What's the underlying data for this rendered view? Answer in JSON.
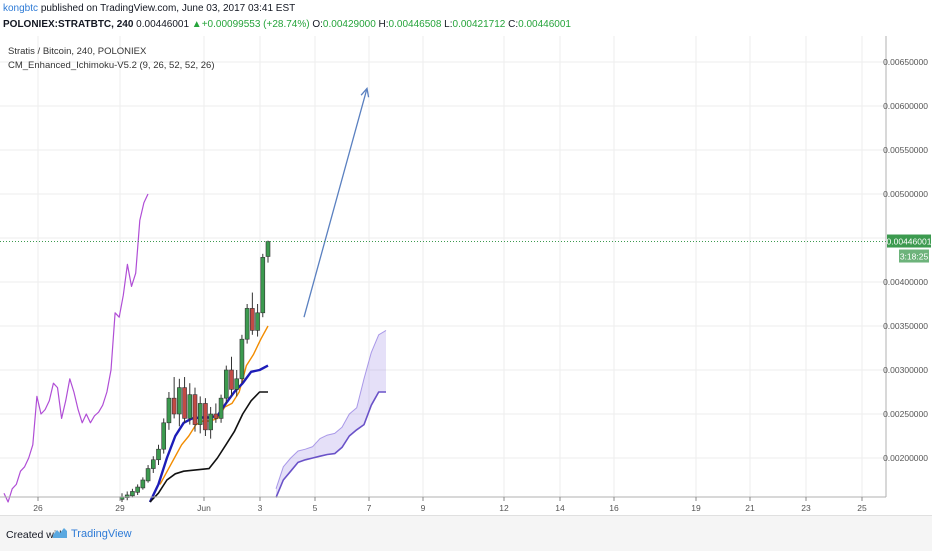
{
  "header": {
    "author": "kongbtc",
    "published": "published on TradingView.com, June 03, 2017 03:41 EST",
    "symbol": "POLONIEX:STRATBTC, 240",
    "last": "0.00446001",
    "change_arrow": "▲",
    "change": "+0.00099553 (+28.74%)",
    "o_label": "O:",
    "o": "0.00429000",
    "h_label": "H:",
    "h": "0.00446508",
    "l_label": "L:",
    "l": "0.00421712",
    "c_label": "C:",
    "c": "0.00446001"
  },
  "legend": {
    "title": "Stratis / Bitcoin, 240, POLONIEX",
    "indicator": "CM_Enhanced_Ichimoku-V5.2 (9, 26, 52, 52, 26)"
  },
  "price_axis": {
    "ticks": [
      "0.00650000",
      "0.00600000",
      "0.00550000",
      "0.00500000",
      "0.00400000",
      "0.00350000",
      "0.00300000",
      "0.00250000",
      "0.00200000"
    ],
    "last_price_tag": "0.00446001",
    "countdown_tag": "3:18:25"
  },
  "time_axis": {
    "ticks": [
      "26",
      "29",
      "Jun",
      "3",
      "5",
      "7",
      "9",
      "12",
      "14",
      "16",
      "19",
      "21",
      "23",
      "25"
    ]
  },
  "footer": {
    "created_with": "Created with",
    "brand": "TradingView"
  },
  "colors": {
    "up_candle": "#3c9a4f",
    "down_candle": "#c24a45",
    "lagging_span": "#b04ed6",
    "tenkan": "#f28c00",
    "kijun": "#1c1cb8",
    "cloud": "#8a74e0",
    "projection_arrow": "#5a80c0",
    "price_tag": "#3c9a4f"
  },
  "chart_data": {
    "type": "candlestick",
    "candles": [
      {
        "o": 0.00153,
        "h": 0.0016,
        "l": 0.0015,
        "c": 0.00156
      },
      {
        "o": 0.00155,
        "h": 0.00162,
        "l": 0.00152,
        "c": 0.00158
      },
      {
        "o": 0.00157,
        "h": 0.00165,
        "l": 0.00155,
        "c": 0.00162
      },
      {
        "o": 0.00161,
        "h": 0.0017,
        "l": 0.00158,
        "c": 0.00167
      },
      {
        "o": 0.00166,
        "h": 0.00178,
        "l": 0.00164,
        "c": 0.00175
      },
      {
        "o": 0.00174,
        "h": 0.00192,
        "l": 0.00172,
        "c": 0.00188
      },
      {
        "o": 0.00188,
        "h": 0.00202,
        "l": 0.00183,
        "c": 0.00198
      },
      {
        "o": 0.00198,
        "h": 0.00215,
        "l": 0.00192,
        "c": 0.0021
      },
      {
        "o": 0.0021,
        "h": 0.00245,
        "l": 0.00205,
        "c": 0.0024
      },
      {
        "o": 0.0024,
        "h": 0.00275,
        "l": 0.00232,
        "c": 0.00268
      },
      {
        "o": 0.00268,
        "h": 0.00292,
        "l": 0.00245,
        "c": 0.0025
      },
      {
        "o": 0.0025,
        "h": 0.0029,
        "l": 0.00236,
        "c": 0.0028
      },
      {
        "o": 0.0028,
        "h": 0.00292,
        "l": 0.0024,
        "c": 0.00245
      },
      {
        "o": 0.00245,
        "h": 0.00285,
        "l": 0.00238,
        "c": 0.00272
      },
      {
        "o": 0.00272,
        "h": 0.0028,
        "l": 0.0023,
        "c": 0.00238
      },
      {
        "o": 0.00238,
        "h": 0.0027,
        "l": 0.00228,
        "c": 0.00262
      },
      {
        "o": 0.00262,
        "h": 0.00268,
        "l": 0.00225,
        "c": 0.00232
      },
      {
        "o": 0.00232,
        "h": 0.00258,
        "l": 0.00222,
        "c": 0.0025
      },
      {
        "o": 0.0025,
        "h": 0.00262,
        "l": 0.0024,
        "c": 0.00245
      },
      {
        "o": 0.00245,
        "h": 0.00272,
        "l": 0.0024,
        "c": 0.00268
      },
      {
        "o": 0.00268,
        "h": 0.00305,
        "l": 0.00262,
        "c": 0.003
      },
      {
        "o": 0.003,
        "h": 0.00315,
        "l": 0.0027,
        "c": 0.00278
      },
      {
        "o": 0.00278,
        "h": 0.003,
        "l": 0.0027,
        "c": 0.0029
      },
      {
        "o": 0.0029,
        "h": 0.0034,
        "l": 0.00285,
        "c": 0.00335
      },
      {
        "o": 0.00335,
        "h": 0.00375,
        "l": 0.0033,
        "c": 0.0037
      },
      {
        "o": 0.0037,
        "h": 0.00388,
        "l": 0.0034,
        "c": 0.00345
      },
      {
        "o": 0.00345,
        "h": 0.00375,
        "l": 0.00338,
        "c": 0.00365
      },
      {
        "o": 0.00365,
        "h": 0.00432,
        "l": 0.0036,
        "c": 0.00428
      },
      {
        "o": 0.00429,
        "h": 0.00447,
        "l": 0.00422,
        "c": 0.00446
      }
    ],
    "tenkan": [
      0.0017,
      0.00185,
      0.002,
      0.00215,
      0.00225,
      0.00238,
      0.00242,
      0.00242,
      0.00245,
      0.00258,
      0.00262,
      0.00275,
      0.00305,
      0.00318,
      0.00335,
      0.0035
    ],
    "kijun": [
      0.0015,
      0.0017,
      0.002,
      0.00225,
      0.0024,
      0.00245,
      0.00246,
      0.00246,
      0.00248,
      0.00262,
      0.00275,
      0.00285,
      0.00298,
      0.003,
      0.00305
    ],
    "chikou": [
      0.0016,
      0.0015,
      0.00165,
      0.0017,
      0.00185,
      0.0019,
      0.002,
      0.00215,
      0.0027,
      0.0025,
      0.00255,
      0.00265,
      0.00285,
      0.0028,
      0.00245,
      0.00265,
      0.0029,
      0.00275,
      0.00255,
      0.0024,
      0.0025,
      0.0024,
      0.00248,
      0.00252,
      0.0026,
      0.00275,
      0.003,
      0.00365,
      0.0036,
      0.00385,
      0.0042,
      0.00395,
      0.0041,
      0.0047,
      0.0049,
      0.005
    ],
    "cloud_a": [
      0.00165,
      0.0019,
      0.002,
      0.00208,
      0.0021,
      0.00213,
      0.00222,
      0.00226,
      0.00228,
      0.00235,
      0.0025,
      0.00257,
      0.0029,
      0.0032,
      0.0034,
      0.00345
    ],
    "cloud_b": [
      0.00155,
      0.00175,
      0.00185,
      0.00195,
      0.00198,
      0.002,
      0.00202,
      0.00204,
      0.00205,
      0.00212,
      0.00225,
      0.00232,
      0.00238,
      0.0026,
      0.00275,
      0.00275
    ],
    "projection_arrow": {
      "from": 0.0036,
      "to": 0.0062
    }
  }
}
